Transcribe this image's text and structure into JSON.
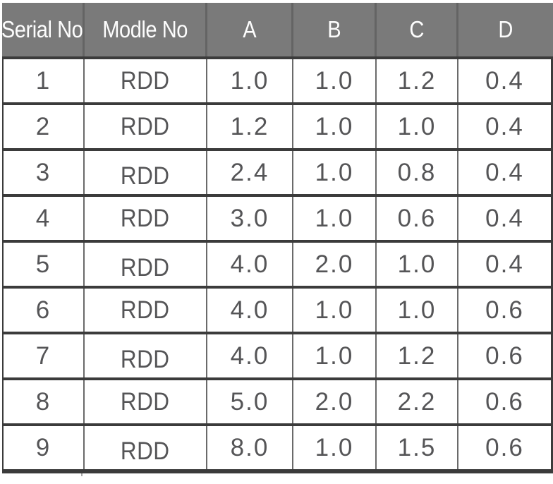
{
  "chart_data": {
    "type": "table",
    "title": "",
    "columns": [
      "Serial No",
      "Modle No",
      "A",
      "B",
      "C",
      "D"
    ],
    "rows": [
      [
        "1",
        "RDD",
        "1.0",
        "1.0",
        "1.2",
        "0.4"
      ],
      [
        "2",
        "RDD",
        "1.2",
        "1.0",
        "1.0",
        "0.4"
      ],
      [
        "3",
        "RDD",
        "2.4",
        "1.0",
        "0.8",
        "0.4"
      ],
      [
        "4",
        "RDD",
        "3.0",
        "1.0",
        "0.6",
        "0.4"
      ],
      [
        "5",
        "RDD",
        "4.0",
        "2.0",
        "1.0",
        "0.4"
      ],
      [
        "6",
        "RDD",
        "4.0",
        "1.0",
        "1.0",
        "0.6"
      ],
      [
        "7",
        "RDD",
        "4.0",
        "1.0",
        "1.2",
        "0.6"
      ],
      [
        "8",
        "RDD",
        "5.0",
        "2.0",
        "2.2",
        "0.6"
      ],
      [
        "9",
        "RDD",
        "8.0",
        "1.0",
        "1.5",
        "0.6"
      ]
    ]
  },
  "colors": {
    "header_bg": "#7a7a7a",
    "header_text": "#fdfdfd",
    "header_divider": "#646464",
    "row_border": "#3b3b3b",
    "column_divider": "#6a6a6a",
    "body_text": "#555557",
    "body_bg": "#ffffff"
  }
}
